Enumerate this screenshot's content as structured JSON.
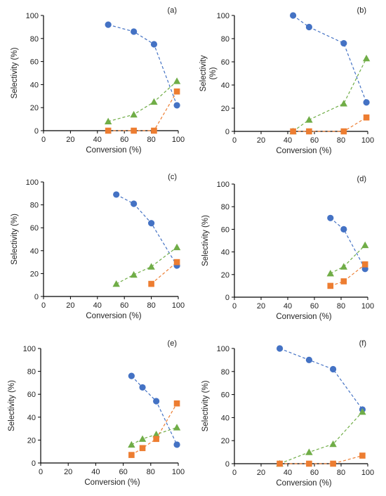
{
  "figure": {
    "colors": {
      "blue": "#4472C4",
      "orange": "#ED7D31",
      "green": "#70AD47",
      "axis": "#000000",
      "tick": "#222222"
    }
  },
  "chart_data": [
    {
      "panel": "(a)",
      "type": "scatter",
      "xlabel": "Conversion (%)",
      "ylabel": "Selectivity (%)",
      "xlim": [
        0,
        100
      ],
      "ylim": [
        0,
        100
      ],
      "xticks": [
        0,
        20,
        40,
        60,
        80,
        100
      ],
      "yticks": [
        0,
        20,
        40,
        60,
        80,
        100
      ],
      "grid": false,
      "series": [
        {
          "marker": "circle",
          "color": "#4472C4",
          "x": [
            48,
            67,
            82,
            99
          ],
          "y": [
            92,
            86,
            75,
            22
          ]
        },
        {
          "marker": "triangle",
          "color": "#70AD47",
          "x": [
            48,
            67,
            82,
            99
          ],
          "y": [
            8,
            14,
            25,
            43
          ]
        },
        {
          "marker": "square",
          "color": "#ED7D31",
          "x": [
            48,
            67,
            82,
            99
          ],
          "y": [
            0,
            0,
            0,
            34
          ]
        }
      ]
    },
    {
      "panel": "(b)",
      "type": "scatter",
      "xlabel": "Conversion (%)",
      "ylabel": "Selectivity\n(%)",
      "xlim": [
        0,
        100
      ],
      "ylim": [
        0,
        100
      ],
      "xticks": [
        0,
        20,
        40,
        60,
        80,
        100
      ],
      "yticks": [
        0,
        20,
        40,
        60,
        80,
        100
      ],
      "grid": false,
      "series": [
        {
          "marker": "circle",
          "color": "#4472C4",
          "x": [
            44,
            56,
            82,
            99
          ],
          "y": [
            100,
            90,
            76,
            25
          ]
        },
        {
          "marker": "triangle",
          "color": "#70AD47",
          "x": [
            44,
            56,
            82,
            99
          ],
          "y": [
            0,
            10,
            24,
            63
          ]
        },
        {
          "marker": "square",
          "color": "#ED7D31",
          "x": [
            44,
            56,
            82,
            99
          ],
          "y": [
            0,
            0,
            0,
            12
          ]
        }
      ]
    },
    {
      "panel": "(c)",
      "type": "scatter",
      "xlabel": "Conversion (%)",
      "ylabel": "Selectivity (%)",
      "xlim": [
        0,
        100
      ],
      "ylim": [
        0,
        100
      ],
      "xticks": [
        0,
        20,
        40,
        60,
        80,
        100
      ],
      "yticks": [
        0,
        20,
        40,
        60,
        80,
        100
      ],
      "grid": false,
      "series": [
        {
          "marker": "circle",
          "color": "#4472C4",
          "x": [
            54,
            67,
            80,
            99
          ],
          "y": [
            89,
            81,
            64,
            27
          ]
        },
        {
          "marker": "triangle",
          "color": "#70AD47",
          "x": [
            54,
            67,
            80,
            99
          ],
          "y": [
            11,
            19,
            26,
            43
          ]
        },
        {
          "marker": "square",
          "color": "#ED7D31",
          "x": [
            80,
            99
          ],
          "y": [
            11,
            30
          ]
        }
      ]
    },
    {
      "panel": "(d)",
      "type": "scatter",
      "xlabel": "Conversion (%)",
      "ylabel": "Selectivity (%)",
      "xlim": [
        0,
        100
      ],
      "ylim": [
        0,
        100
      ],
      "xticks": [
        0,
        20,
        40,
        60,
        80,
        100
      ],
      "yticks": [
        0,
        20,
        40,
        60,
        80,
        100
      ],
      "grid": false,
      "series": [
        {
          "marker": "circle",
          "color": "#4472C4",
          "x": [
            72,
            82,
            98
          ],
          "y": [
            70,
            60,
            25
          ]
        },
        {
          "marker": "triangle",
          "color": "#70AD47",
          "x": [
            72,
            82,
            98
          ],
          "y": [
            21,
            27,
            46
          ]
        },
        {
          "marker": "square",
          "color": "#ED7D31",
          "x": [
            72,
            82,
            98
          ],
          "y": [
            10,
            14,
            29
          ]
        }
      ]
    },
    {
      "panel": "(e)",
      "type": "scatter",
      "xlabel": "Conversion (%)",
      "ylabel": "Selectivity (%)",
      "xlim": [
        0,
        100
      ],
      "ylim": [
        0,
        100
      ],
      "xticks": [
        0,
        20,
        40,
        60,
        80,
        100
      ],
      "yticks": [
        0,
        20,
        40,
        60,
        80,
        100
      ],
      "grid": false,
      "series": [
        {
          "marker": "circle",
          "color": "#4472C4",
          "x": [
            66,
            74,
            84,
            99
          ],
          "y": [
            76,
            66,
            54,
            16
          ]
        },
        {
          "marker": "triangle",
          "color": "#70AD47",
          "x": [
            66,
            74,
            84,
            99
          ],
          "y": [
            16,
            21,
            25,
            31
          ]
        },
        {
          "marker": "square",
          "color": "#ED7D31",
          "x": [
            66,
            74,
            84,
            99
          ],
          "y": [
            7,
            13,
            21,
            52
          ]
        }
      ]
    },
    {
      "panel": "(f)",
      "type": "scatter",
      "xlabel": "Conversion (%)",
      "ylabel": "Selectivity (%)",
      "xlim": [
        0,
        100
      ],
      "ylim": [
        0,
        100
      ],
      "xticks": [
        0,
        20,
        40,
        60,
        80,
        100
      ],
      "yticks": [
        0,
        20,
        40,
        60,
        80,
        100
      ],
      "grid": false,
      "series": [
        {
          "marker": "circle",
          "color": "#4472C4",
          "x": [
            34,
            56,
            74,
            96
          ],
          "y": [
            100,
            90,
            82,
            47
          ]
        },
        {
          "marker": "triangle",
          "color": "#70AD47",
          "x": [
            34,
            56,
            74,
            96
          ],
          "y": [
            0,
            10,
            17,
            45
          ]
        },
        {
          "marker": "square",
          "color": "#ED7D31",
          "x": [
            34,
            56,
            74,
            96
          ],
          "y": [
            0,
            0,
            0,
            7
          ]
        }
      ]
    }
  ]
}
